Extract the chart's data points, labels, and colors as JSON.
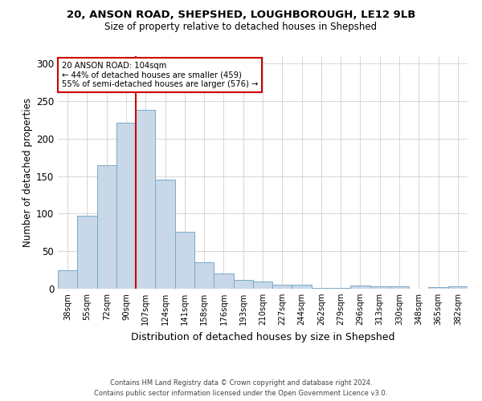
{
  "title1": "20, ANSON ROAD, SHEPSHED, LOUGHBOROUGH, LE12 9LB",
  "title2": "Size of property relative to detached houses in Shepshed",
  "xlabel": "Distribution of detached houses by size in Shepshed",
  "ylabel": "Number of detached properties",
  "footnote1": "Contains HM Land Registry data © Crown copyright and database right 2024.",
  "footnote2": "Contains public sector information licensed under the Open Government Licence v3.0.",
  "bar_labels": [
    "38sqm",
    "55sqm",
    "72sqm",
    "90sqm",
    "107sqm",
    "124sqm",
    "141sqm",
    "158sqm",
    "176sqm",
    "193sqm",
    "210sqm",
    "227sqm",
    "244sqm",
    "262sqm",
    "279sqm",
    "296sqm",
    "313sqm",
    "330sqm",
    "348sqm",
    "365sqm",
    "382sqm"
  ],
  "bar_values": [
    25,
    97,
    165,
    221,
    238,
    145,
    76,
    35,
    20,
    12,
    10,
    5,
    5,
    1,
    1,
    4,
    3,
    3,
    0,
    2,
    3
  ],
  "bar_color": "#c8d8e8",
  "bar_edge_color": "#7aa8c8",
  "property_line_index": 4,
  "annotation_text1": "20 ANSON ROAD: 104sqm",
  "annotation_text2": "← 44% of detached houses are smaller (459)",
  "annotation_text3": "55% of semi-detached houses are larger (576) →",
  "annotation_box_edgecolor": "#cc0000",
  "ylim": [
    0,
    310
  ],
  "yticks": [
    0,
    50,
    100,
    150,
    200,
    250,
    300
  ]
}
